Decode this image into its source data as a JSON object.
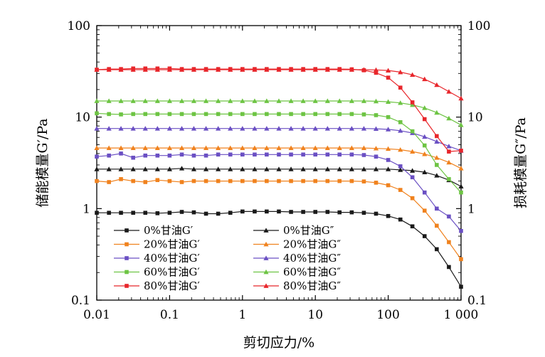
{
  "chart_data": {
    "type": "line",
    "xlabel": "剪切应力/%",
    "ylabel_left": "储能模量G′/Pa",
    "ylabel_right": "损耗模量G″/Pa",
    "x_scale": "log",
    "y_scale": "log",
    "xlim": [
      0.01,
      1000
    ],
    "ylim": [
      0.1,
      100
    ],
    "x_ticks": [
      "0.01",
      "0.1",
      "1",
      "10",
      "100",
      "1 000"
    ],
    "y_ticks": [
      "0.1",
      "1",
      "10",
      "100"
    ],
    "grid": false,
    "legend_position": "bottom-left",
    "x": [
      0.01,
      0.0147,
      0.0215,
      0.0316,
      0.0464,
      0.0681,
      0.1,
      0.147,
      0.215,
      0.316,
      0.464,
      0.681,
      1,
      1.47,
      2.15,
      3.16,
      4.64,
      6.81,
      10,
      14.7,
      21.5,
      31.6,
      46.4,
      68.1,
      100,
      147,
      215,
      316,
      464,
      681,
      1000
    ],
    "series": [
      {
        "name": "0%甘油G′",
        "color": "#1a1a1a",
        "marker": "square",
        "values": [
          0.9,
          0.9,
          0.9,
          0.9,
          0.9,
          0.89,
          0.9,
          0.92,
          0.91,
          0.88,
          0.88,
          0.9,
          0.93,
          0.93,
          0.93,
          0.93,
          0.92,
          0.92,
          0.92,
          0.92,
          0.91,
          0.91,
          0.9,
          0.88,
          0.83,
          0.76,
          0.64,
          0.5,
          0.36,
          0.23,
          0.14
        ]
      },
      {
        "name": "0%甘油G″",
        "color": "#1a1a1a",
        "marker": "triangle",
        "values": [
          2.7,
          2.7,
          2.7,
          2.7,
          2.7,
          2.7,
          2.7,
          2.75,
          2.7,
          2.7,
          2.7,
          2.7,
          2.7,
          2.7,
          2.7,
          2.7,
          2.7,
          2.7,
          2.7,
          2.7,
          2.7,
          2.7,
          2.7,
          2.7,
          2.7,
          2.65,
          2.6,
          2.5,
          2.3,
          2.05,
          1.75
        ]
      },
      {
        "name": "20%甘油G′",
        "color": "#f0821e",
        "marker": "square",
        "values": [
          2.0,
          1.95,
          2.1,
          2.0,
          1.95,
          2.05,
          2.0,
          1.95,
          2.0,
          2.0,
          2.0,
          2.0,
          2.0,
          2.0,
          2.0,
          2.0,
          2.0,
          2.0,
          2.0,
          2.0,
          2.0,
          2.0,
          1.98,
          1.92,
          1.8,
          1.6,
          1.3,
          0.95,
          0.65,
          0.43,
          0.28
        ]
      },
      {
        "name": "20%甘油G″",
        "color": "#f0821e",
        "marker": "triangle",
        "values": [
          4.6,
          4.6,
          4.6,
          4.6,
          4.6,
          4.6,
          4.6,
          4.6,
          4.6,
          4.6,
          4.6,
          4.6,
          4.6,
          4.6,
          4.6,
          4.6,
          4.6,
          4.6,
          4.6,
          4.6,
          4.6,
          4.6,
          4.6,
          4.55,
          4.5,
          4.4,
          4.2,
          3.95,
          3.6,
          3.2,
          2.75
        ]
      },
      {
        "name": "40%甘油G′",
        "color": "#6a4fc3",
        "marker": "square",
        "values": [
          3.7,
          3.8,
          4.0,
          3.6,
          3.8,
          3.8,
          3.8,
          3.9,
          3.8,
          3.8,
          3.9,
          3.9,
          3.9,
          3.9,
          3.9,
          3.9,
          3.9,
          3.9,
          3.9,
          3.9,
          3.9,
          3.9,
          3.85,
          3.7,
          3.4,
          2.9,
          2.2,
          1.5,
          1.0,
          0.82,
          0.57
        ]
      },
      {
        "name": "40%甘油G″",
        "color": "#6a4fc3",
        "marker": "triangle",
        "values": [
          7.5,
          7.5,
          7.5,
          7.5,
          7.5,
          7.5,
          7.5,
          7.5,
          7.5,
          7.5,
          7.5,
          7.5,
          7.5,
          7.5,
          7.5,
          7.5,
          7.5,
          7.5,
          7.5,
          7.5,
          7.5,
          7.5,
          7.5,
          7.45,
          7.35,
          7.1,
          6.7,
          6.1,
          5.4,
          4.8,
          4.3
        ]
      },
      {
        "name": "60%甘油G′",
        "color": "#6dc443",
        "marker": "square",
        "values": [
          11.0,
          10.8,
          10.7,
          10.8,
          10.8,
          10.8,
          10.8,
          10.8,
          10.8,
          10.8,
          10.8,
          10.8,
          10.8,
          10.8,
          10.8,
          10.8,
          10.8,
          10.8,
          10.8,
          10.8,
          10.8,
          10.8,
          10.7,
          10.5,
          10.0,
          8.8,
          7.0,
          4.9,
          3.0,
          2.1,
          1.5
        ]
      },
      {
        "name": "60%甘油G″",
        "color": "#6dc443",
        "marker": "triangle",
        "values": [
          15.0,
          15.0,
          15.0,
          15.0,
          15.0,
          15.0,
          15.0,
          15.0,
          15.0,
          15.0,
          15.0,
          15.0,
          15.0,
          15.0,
          15.0,
          15.0,
          15.0,
          15.0,
          15.0,
          15.0,
          15.0,
          15.0,
          15.0,
          14.9,
          14.7,
          14.3,
          13.6,
          12.6,
          11.2,
          9.7,
          8.2
        ]
      },
      {
        "name": "80%甘油G′",
        "color": "#e8262b",
        "marker": "square",
        "values": [
          33.0,
          33.5,
          33.5,
          34.0,
          34.0,
          34.0,
          34.0,
          33.5,
          33.5,
          33.5,
          33.5,
          33.5,
          33.5,
          33.5,
          33.5,
          33.5,
          33.5,
          33.5,
          33.5,
          33.5,
          33.5,
          33.3,
          32.5,
          30.5,
          27.0,
          21.0,
          14.5,
          9.5,
          6.2,
          4.2,
          4.3
        ]
      },
      {
        "name": "80%甘油G″",
        "color": "#e8262b",
        "marker": "triangle",
        "values": [
          33.0,
          33.0,
          33.0,
          33.0,
          33.0,
          33.0,
          33.0,
          33.0,
          33.0,
          33.0,
          33.0,
          33.0,
          33.0,
          33.0,
          33.0,
          33.0,
          33.0,
          33.0,
          33.0,
          33.0,
          33.0,
          33.0,
          33.0,
          32.8,
          32.3,
          31.0,
          29.0,
          26.0,
          22.5,
          19.0,
          16.0
        ]
      }
    ]
  }
}
